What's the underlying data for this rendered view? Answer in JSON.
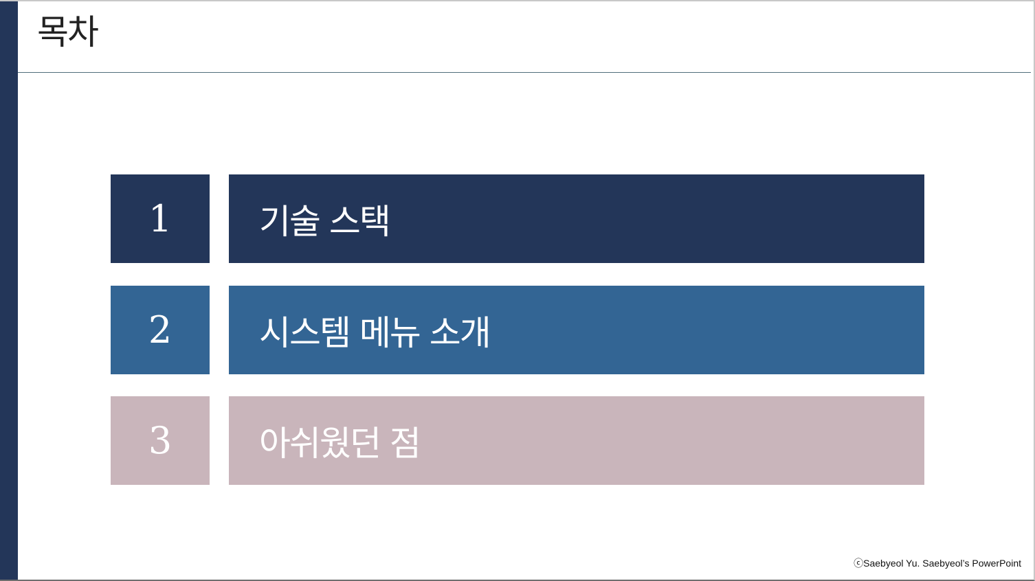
{
  "slide": {
    "title": "목차",
    "footer": "ⓒSaebyeol Yu. Saebyeol’s PowerPoint"
  },
  "colors": {
    "navy": "#233659",
    "blue": "#336594",
    "rose": "#c9b5bb"
  },
  "toc": {
    "items": [
      {
        "number": "1",
        "label": "기술 스택",
        "color": "#233659"
      },
      {
        "number": "2",
        "label": "시스템 메뉴 소개",
        "color": "#336594"
      },
      {
        "number": "3",
        "label": "아쉬웠던 점",
        "color": "#c9b5bb"
      }
    ]
  }
}
